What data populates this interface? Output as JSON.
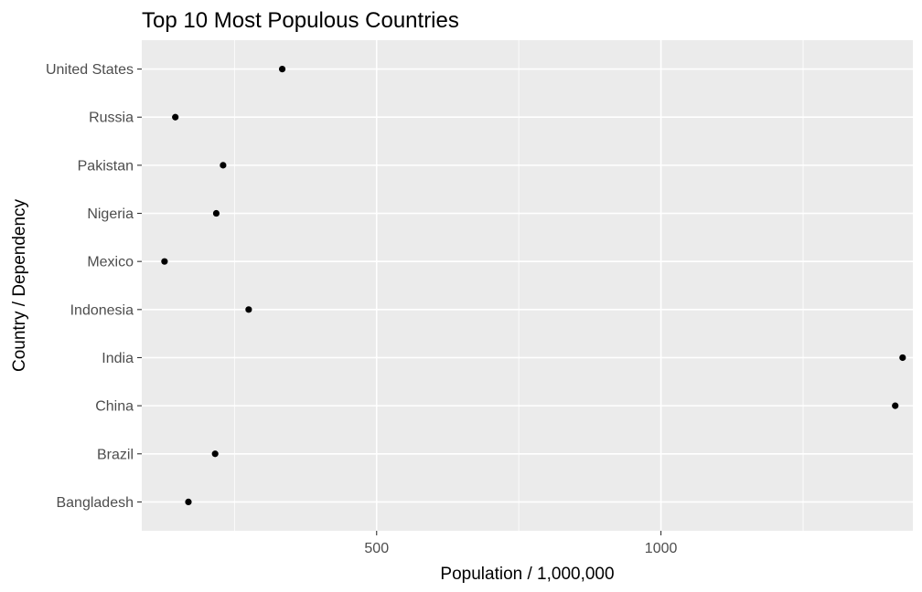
{
  "chart_data": {
    "type": "scatter",
    "title": "Top 10 Most Populous Countries",
    "xlabel": "Population / 1,000,000",
    "ylabel": "Country / Dependency",
    "xlim": [
      87,
      1443
    ],
    "xticks": [
      500,
      1000
    ],
    "xtick_labels": [
      "500",
      "1000"
    ],
    "grid": true,
    "categories": [
      "Bangladesh",
      "Brazil",
      "China",
      "India",
      "Indonesia",
      "Mexico",
      "Nigeria",
      "Pakistan",
      "Russia",
      "United States"
    ],
    "values": [
      169,
      216,
      1412,
      1425,
      275,
      127,
      218,
      230,
      146,
      334
    ]
  }
}
